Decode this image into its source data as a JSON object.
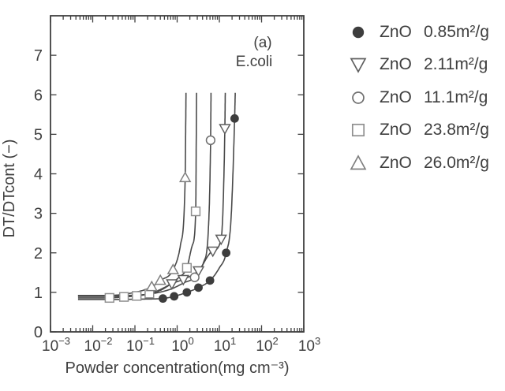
{
  "figure": {
    "background": "#ffffff"
  },
  "colors": {
    "ink": "#3f3f3f",
    "curve": "#4a4a4a",
    "marker_fill": "#3d3d3d",
    "background": "#ffffff"
  },
  "chart_data": {
    "type": "scatter",
    "title": "",
    "x_scale": "log",
    "xlabel": "Powder concentration(mg cm⁻³)",
    "ylabel": "DT/DTcont (−)",
    "annotations": [
      "(a)",
      "E.coli"
    ],
    "x_range_exponents": [
      -3,
      3
    ],
    "y_range": [
      0,
      8
    ],
    "x_tick_exponents": [
      -3,
      -2,
      -1,
      0,
      1,
      2,
      3
    ],
    "y_ticks": [
      0,
      1,
      2,
      3,
      4,
      5,
      6,
      7
    ],
    "grid": false,
    "legend_position": "right-outside",
    "curve_cut_y": 6.05,
    "series": [
      {
        "name": "ZnO 0.85m²/g",
        "legend": {
          "material": "ZnO",
          "area": "0.85m²/g"
        },
        "marker": "circle-filled",
        "stroke": "#3d3d3d",
        "baseline_y": 0.82,
        "asymptote_x": 24,
        "points": [
          [
            0.46,
            0.845
          ],
          [
            0.85,
            0.9
          ],
          [
            1.7,
            1.0
          ],
          [
            3.2,
            1.12
          ],
          [
            6.0,
            1.3
          ],
          [
            14.5,
            2.0
          ],
          [
            23,
            5.4
          ]
        ],
        "curve": [
          [
            0.0045,
            0.82
          ],
          [
            0.03,
            0.82
          ],
          [
            0.15,
            0.83
          ],
          [
            0.46,
            0.845
          ],
          [
            0.85,
            0.9
          ],
          [
            1.7,
            1.0
          ],
          [
            3.2,
            1.12
          ],
          [
            6.0,
            1.3
          ],
          [
            10,
            1.62
          ],
          [
            14.5,
            2.0
          ],
          [
            19,
            2.9
          ],
          [
            23,
            5.4
          ],
          [
            23.8,
            6.05
          ]
        ]
      },
      {
        "name": "ZnO 2.11m²/g",
        "legend": {
          "material": "ZnO",
          "area": "2.11m²/g"
        },
        "marker": "triangle-down-open",
        "stroke": "#5f5f5f",
        "baseline_y": 0.92,
        "asymptote_x": 14,
        "points": [
          [
            0.75,
            1.22
          ],
          [
            1.4,
            1.33
          ],
          [
            3.2,
            1.55
          ],
          [
            7.0,
            2.05
          ],
          [
            11,
            2.35
          ],
          [
            13.5,
            5.15
          ]
        ],
        "curve": [
          [
            0.0045,
            0.92
          ],
          [
            0.03,
            0.92
          ],
          [
            0.15,
            0.94
          ],
          [
            0.4,
            1.05
          ],
          [
            0.75,
            1.22
          ],
          [
            1.4,
            1.33
          ],
          [
            3.2,
            1.55
          ],
          [
            7.0,
            2.05
          ],
          [
            11,
            2.35
          ],
          [
            13.5,
            5.15
          ],
          [
            13.8,
            6.05
          ]
        ]
      },
      {
        "name": "ZnO 11.1m²/g",
        "legend": {
          "material": "ZnO",
          "area": "11.1m²/g"
        },
        "marker": "circle-open",
        "stroke": "#6f6f6f",
        "baseline_y": 0.9,
        "asymptote_x": 6.4,
        "points": [
          [
            2.6,
            1.38
          ],
          [
            6.2,
            4.85
          ]
        ],
        "curve": [
          [
            0.0045,
            0.9
          ],
          [
            0.03,
            0.9
          ],
          [
            0.2,
            0.95
          ],
          [
            0.7,
            1.08
          ],
          [
            1.5,
            1.25
          ],
          [
            2.6,
            1.38
          ],
          [
            4.2,
            1.75
          ],
          [
            5.5,
            2.6
          ],
          [
            6.2,
            4.85
          ],
          [
            6.35,
            6.05
          ]
        ]
      },
      {
        "name": "ZnO 23.8m²/g",
        "legend": {
          "material": "ZnO",
          "area": "23.8m²/g"
        },
        "marker": "square-open",
        "stroke": "#8f8f8f",
        "baseline_y": 0.86,
        "asymptote_x": 2.85,
        "points": [
          [
            0.025,
            0.86
          ],
          [
            0.055,
            0.885
          ],
          [
            0.11,
            0.91
          ],
          [
            0.22,
            0.97
          ],
          [
            1.7,
            1.62
          ],
          [
            2.75,
            3.05
          ]
        ],
        "curve": [
          [
            0.0045,
            0.86
          ],
          [
            0.025,
            0.86
          ],
          [
            0.055,
            0.885
          ],
          [
            0.11,
            0.91
          ],
          [
            0.22,
            0.97
          ],
          [
            0.6,
            1.17
          ],
          [
            1.1,
            1.38
          ],
          [
            1.7,
            1.62
          ],
          [
            2.3,
            2.2
          ],
          [
            2.75,
            3.05
          ],
          [
            2.88,
            6.05
          ]
        ]
      },
      {
        "name": "ZnO 26.0m²/g",
        "legend": {
          "material": "ZnO",
          "area": "26.0m²/g"
        },
        "marker": "triangle-up-open",
        "stroke": "#7f7f7f",
        "baseline_y": 0.92,
        "asymptote_x": 1.6,
        "points": [
          [
            0.25,
            1.14
          ],
          [
            0.4,
            1.3
          ],
          [
            0.8,
            1.57
          ],
          [
            1.55,
            3.9
          ]
        ],
        "curve": [
          [
            0.0045,
            0.92
          ],
          [
            0.02,
            0.92
          ],
          [
            0.08,
            0.98
          ],
          [
            0.25,
            1.14
          ],
          [
            0.4,
            1.3
          ],
          [
            0.8,
            1.57
          ],
          [
            1.2,
            2.2
          ],
          [
            1.55,
            3.9
          ],
          [
            1.62,
            6.05
          ]
        ]
      }
    ]
  }
}
